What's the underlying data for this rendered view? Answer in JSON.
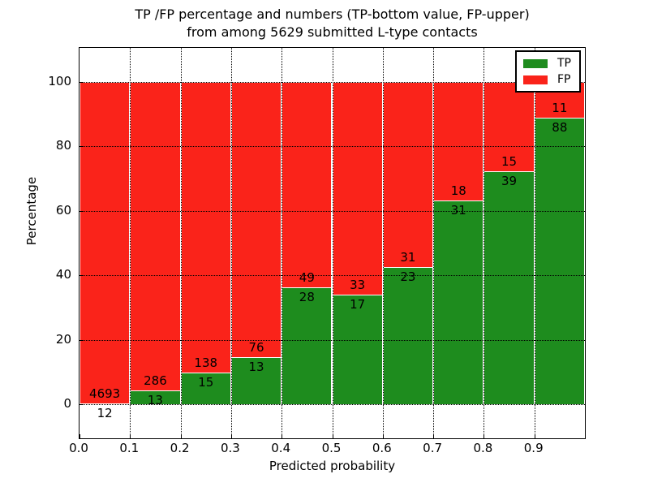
{
  "chart_data": {
    "type": "bar",
    "stacked": true,
    "title_line1": "TP /FP percentage and numbers (TP-bottom value, FP-upper)",
    "title_line2": "from among 5629 submitted L-type contacts",
    "xlabel": "Predicted probability",
    "ylabel": "Percentage",
    "total_contacts": 5629,
    "x_tick_labels": [
      "0.0",
      "0.1",
      "0.2",
      "0.3",
      "0.4",
      "0.5",
      "0.6",
      "0.7",
      "0.8",
      "0.9"
    ],
    "y_tick_values": [
      0,
      20,
      40,
      60,
      80,
      100
    ],
    "xlim": [
      0.0,
      1.0
    ],
    "ylim": [
      -10.5,
      110.5
    ],
    "bin_width": 0.1,
    "grid": true,
    "legend_position": "upper right",
    "bins": [
      {
        "x0": 0.0,
        "tp_count": 12,
        "fp_count": 4693
      },
      {
        "x0": 0.1,
        "tp_count": 13,
        "fp_count": 286
      },
      {
        "x0": 0.2,
        "tp_count": 15,
        "fp_count": 138
      },
      {
        "x0": 0.3,
        "tp_count": 13,
        "fp_count": 76
      },
      {
        "x0": 0.4,
        "tp_count": 28,
        "fp_count": 49
      },
      {
        "x0": 0.5,
        "tp_count": 17,
        "fp_count": 33
      },
      {
        "x0": 0.6,
        "tp_count": 23,
        "fp_count": 31
      },
      {
        "x0": 0.7,
        "tp_count": 31,
        "fp_count": 18
      },
      {
        "x0": 0.8,
        "tp_count": 39,
        "fp_count": 15
      },
      {
        "x0": 0.9,
        "tp_count": 88,
        "fp_count": 11
      }
    ],
    "legend": [
      {
        "label": "TP",
        "color": "#1e8c1e"
      },
      {
        "label": "FP",
        "color": "#fa231a"
      }
    ],
    "colors": {
      "tp": "#1e8c1e",
      "fp": "#fa231a",
      "bar_edge": "#ffffff",
      "grid": "#000000",
      "frame": "#000000",
      "background": "#ffffff",
      "text": "#000000"
    }
  }
}
